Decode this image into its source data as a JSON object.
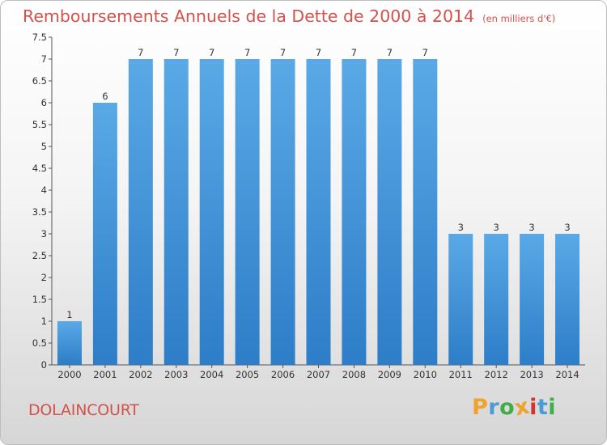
{
  "title": "Remboursements Annuels de la Dette de 2000 à 2014",
  "unit_note": "(en milliers d'€)",
  "city": "DOLAINCOURT",
  "brand": {
    "letters": [
      "P",
      "r",
      "o",
      "x",
      "i",
      "t",
      "i"
    ],
    "colors": [
      "#f0a22c",
      "#4a9bd6",
      "#3fae49",
      "#f0a22c",
      "#d8322e",
      "#4a9bd6",
      "#3fae49"
    ]
  },
  "colors": {
    "title": "#d2524c",
    "bar_light": "#5aa9e6",
    "bar_dark": "#2d7dc8",
    "axis": "#555555"
  },
  "chart_data": {
    "type": "bar",
    "title": "Remboursements Annuels de la Dette de 2000 à 2014",
    "xlabel": "",
    "ylabel": "",
    "categories": [
      "2000",
      "2001",
      "2002",
      "2003",
      "2004",
      "2005",
      "2006",
      "2007",
      "2008",
      "2009",
      "2010",
      "2011",
      "2012",
      "2013",
      "2014"
    ],
    "values": [
      1,
      6,
      7,
      7,
      7,
      7,
      7,
      7,
      7,
      7,
      7,
      3,
      3,
      3,
      3
    ],
    "value_labels": [
      "1",
      "6",
      "7",
      "7",
      "7",
      "7",
      "7",
      "7",
      "7",
      "7",
      "7",
      "3",
      "3",
      "3",
      "3"
    ],
    "ylim": [
      0,
      7.5
    ],
    "yticks": [
      "0",
      "0.5",
      "1",
      "1.5",
      "2",
      "2.5",
      "3",
      "3.5",
      "4",
      "4.5",
      "5",
      "5.5",
      "6",
      "6.5",
      "7",
      "7.5"
    ],
    "grid": false,
    "legend": "none"
  }
}
